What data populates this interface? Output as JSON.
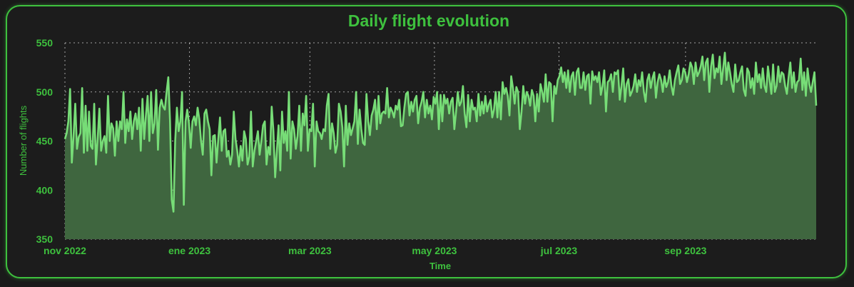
{
  "chart_data": {
    "type": "area",
    "title": "Daily flight evolution",
    "xlabel": "Time",
    "ylabel": "Number of flights",
    "x_start": "2022-11-01",
    "x_end": "2023-11-04",
    "ylim": [
      350,
      550
    ],
    "yticks": [
      350,
      400,
      450,
      500,
      550
    ],
    "xticks": [
      {
        "date": "2022-11-01",
        "label": "nov 2022"
      },
      {
        "date": "2023-01-01",
        "label": "ene 2023"
      },
      {
        "date": "2023-03-01",
        "label": "mar 2023"
      },
      {
        "date": "2023-05-01",
        "label": "may 2023"
      },
      {
        "date": "2023-07-01",
        "label": "jul 2023"
      },
      {
        "date": "2023-09-01",
        "label": "sep 2023"
      }
    ],
    "grid": true,
    "line_color": "#77dd77",
    "fill_color": "#3f663f",
    "accent_color": "#3ec13e",
    "series": [
      {
        "values": [
          452,
          458,
          470,
          503,
          428,
          455,
          488,
          442,
          454,
          458,
          504,
          438,
          486,
          440,
          480,
          445,
          442,
          488,
          426,
          452,
          483,
          440,
          450,
          455,
          438,
          496,
          450,
          468,
          463,
          435,
          470,
          450,
          470,
          462,
          500,
          448,
          472,
          460,
          480,
          452,
          470,
          478,
          462,
          484,
          440,
          493,
          452,
          476,
          496,
          450,
          500,
          458,
          468,
          502,
          441,
          484,
          492,
          485,
          482,
          500,
          515,
          470,
          390,
          378,
          450,
          484,
          460,
          470,
          500,
          385,
          470,
          482,
          468,
          443,
          470,
          475,
          466,
          484,
          472,
          450,
          436,
          478,
          482,
          470,
          462,
          415,
          455,
          456,
          428,
          452,
          474,
          440,
          460,
          462,
          434,
          440,
          426,
          436,
          480,
          452,
          440,
          424,
          445,
          430,
          460,
          452,
          426,
          434,
          480,
          424,
          440,
          450,
          460,
          436,
          450,
          466,
          470,
          426,
          444,
          436,
          485,
          460,
          413,
          440,
          466,
          420,
          480,
          448,
          460,
          440,
          500,
          432,
          470,
          462,
          442,
          455,
          486,
          440,
          478,
          466,
          496,
          440,
          462,
          460,
          488,
          424,
          470,
          460,
          458,
          452,
          462,
          460,
          486,
          498,
          442,
          468,
          458,
          438,
          446,
          488,
          480,
          464,
          424,
          486,
          446,
          468,
          456,
          463,
          470,
          500,
          447,
          482,
          462,
          448,
          446,
          498,
          470,
          456,
          476,
          482,
          492,
          462,
          496,
          468,
          478,
          480,
          478,
          504,
          474,
          484,
          480,
          474,
          486,
          482,
          492,
          465,
          466,
          484,
          498,
          500,
          476,
          490,
          480,
          492,
          496,
          468,
          484,
          490,
          500,
          474,
          492,
          478,
          486,
          472,
          495,
          488,
          500,
          462,
          497,
          470,
          497,
          488,
          493,
          478,
          490,
          494,
          462,
          480,
          500,
          486,
          490,
          506,
          478,
          464,
          497,
          470,
          492,
          482,
          484,
          470,
          498,
          476,
          490,
          478,
          496,
          480,
          487,
          492,
          474,
          482,
          500,
          474,
          500,
          472,
          510,
          498,
          504,
          496,
          476,
          516,
          504,
          488,
          505,
          500,
          462,
          480,
          506,
          488,
          500,
          496,
          486,
          502,
          496,
          470,
          498,
          480,
          508,
          500,
          490,
          518,
          490,
          510,
          508,
          470,
          506,
          498,
          512,
          516,
          525,
          510,
          520,
          504,
          522,
          500,
          516,
          520,
          497,
          520,
          524,
          504,
          504,
          520,
          502,
          516,
          518,
          488,
          521,
          512,
          516,
          510,
          520,
          497,
          506,
          522,
          480,
          510,
          512,
          518,
          500,
          520,
          518,
          522,
          492,
          506,
          524,
          490,
          508,
          513,
          496,
          500,
          506,
          518,
          500,
          512,
          506,
          520,
          500,
          490,
          512,
          518,
          504,
          514,
          520,
          494,
          510,
          518,
          512,
          500,
          516,
          505,
          510,
          522,
          506,
          497,
          512,
          520,
          527,
          508,
          512,
          524,
          520,
          510,
          518,
          530,
          525,
          508,
          530,
          516,
          520,
          526,
          536,
          512,
          530,
          534,
          500,
          526,
          538,
          514,
          524,
          520,
          536,
          508,
          524,
          540,
          512,
          530,
          520,
          508,
          500,
          528,
          510,
          512,
          520,
          526,
          502,
          496,
          524,
          520,
          504,
          514,
          498,
          530,
          510,
          518,
          504,
          524,
          506,
          500,
          526,
          512,
          498,
          528,
          500,
          506,
          526,
          510,
          520,
          518,
          506,
          498,
          515,
          530,
          504,
          520,
          500,
          510,
          512,
          534,
          502,
          520,
          496,
          524,
          508,
          500,
          510,
          520,
          486
        ]
      }
    ]
  }
}
